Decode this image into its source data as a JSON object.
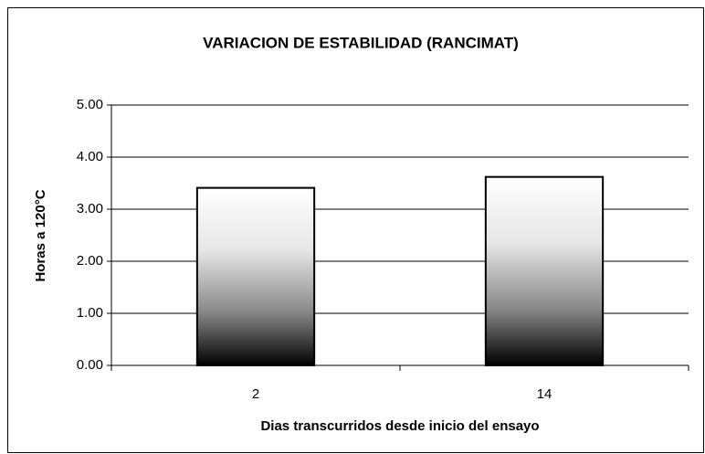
{
  "chart_data": {
    "type": "bar",
    "title": "VARIACION DE ESTABILIDAD (RANCIMAT)",
    "x_label": "Dias transcurridos desde inicio del ensayo",
    "y_label": "Horas a 120°C",
    "categories": [
      "2",
      "14"
    ],
    "values": [
      3.41,
      3.62
    ],
    "ylim": [
      0,
      5
    ],
    "yticks": [
      {
        "value": 0,
        "label": "0.00"
      },
      {
        "value": 1,
        "label": "1.00"
      },
      {
        "value": 2,
        "label": "2.00"
      },
      {
        "value": 3,
        "label": "3.00"
      },
      {
        "value": 4,
        "label": "4.00"
      },
      {
        "value": 5,
        "label": "5.00"
      }
    ],
    "grid": true
  }
}
